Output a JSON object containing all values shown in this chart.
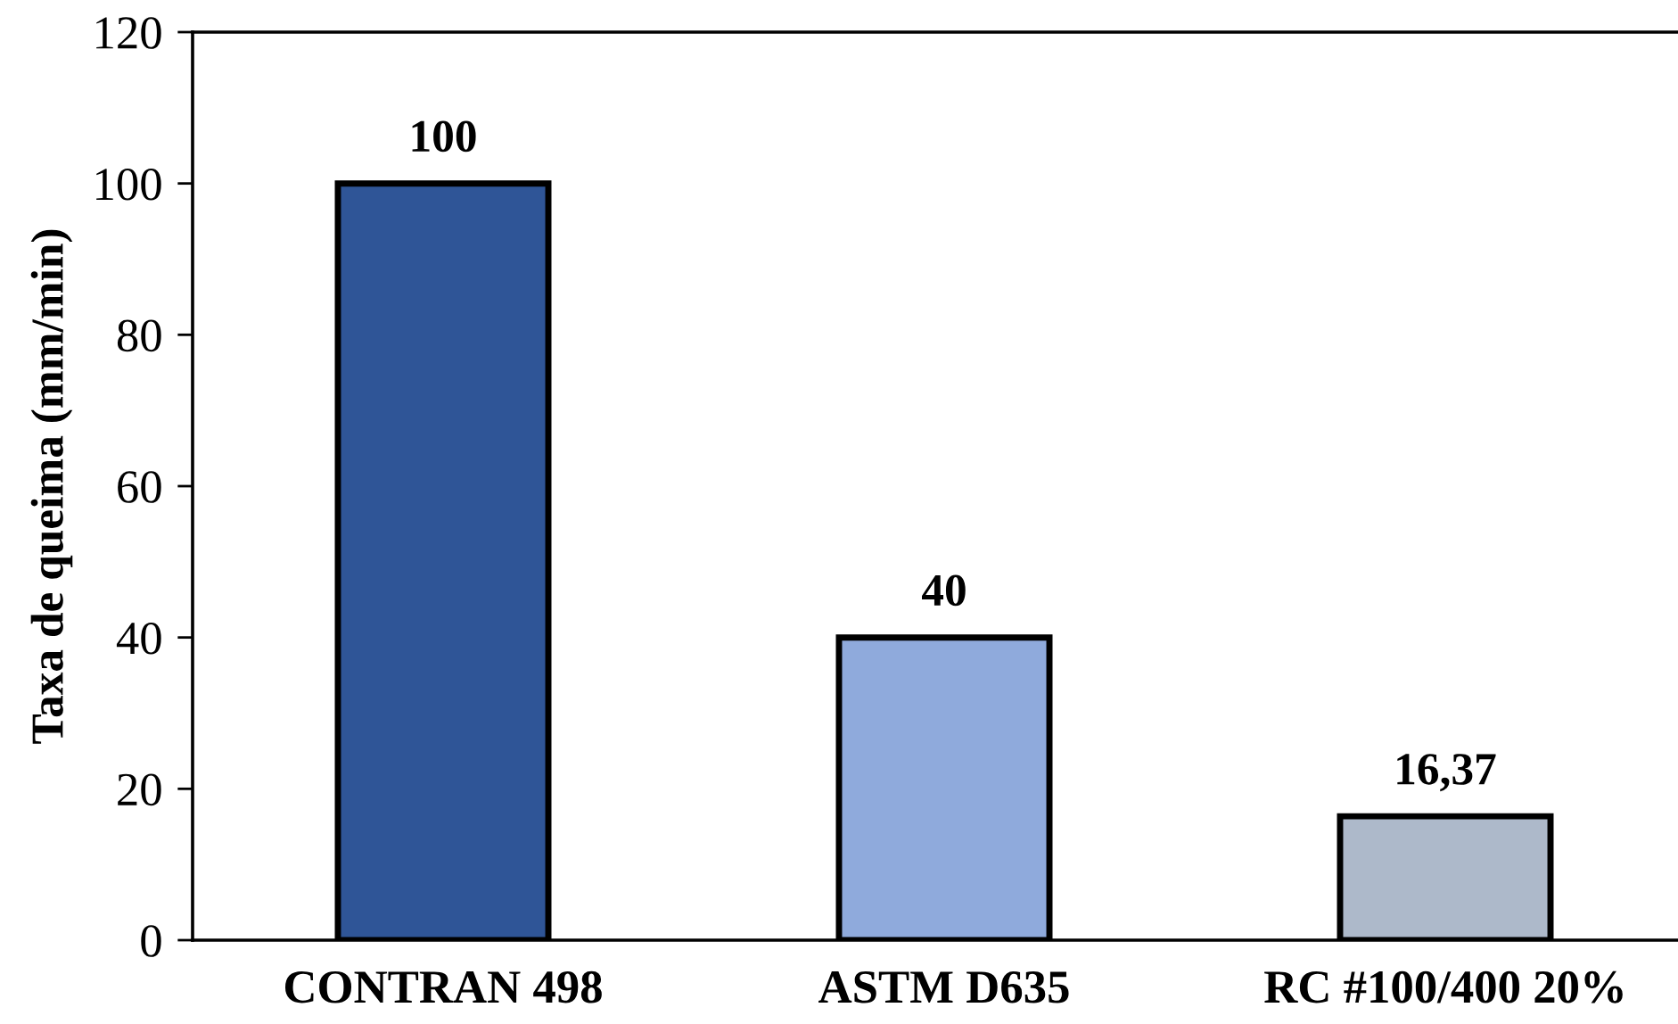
{
  "chart_data": {
    "type": "bar",
    "ylabel": "Taxa de queima (mm/min)",
    "categories": [
      "CONTRAN 498",
      "ASTM D635",
      "RC #100/400 20%"
    ],
    "values": [
      100,
      40,
      16.37
    ],
    "colors": [
      "#2f5597",
      "#8faadc",
      "#adb9ca"
    ],
    "value_labels": [
      "100",
      "40",
      "16,37"
    ],
    "ylim": [
      0,
      120
    ],
    "yticks": [
      0,
      20,
      40,
      60,
      80,
      100,
      120
    ],
    "grid": false,
    "legend": false
  }
}
